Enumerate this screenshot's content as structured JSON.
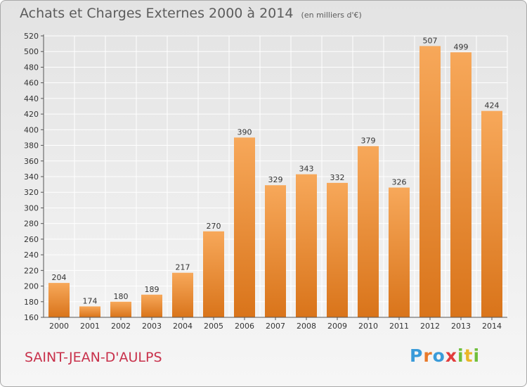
{
  "title": "Achats et Charges Externes 2000 à 2014",
  "unit_note": "(en milliers d'€)",
  "commune": "SAINT-JEAN-D'AULPS",
  "logo": [
    "P",
    "r",
    "o",
    "x",
    "i",
    "t",
    "i"
  ],
  "colors": {
    "bar_top": "#f7a85a",
    "bar_bottom": "#d9741a",
    "grid": "#ffffff",
    "title": "#5c5c5c",
    "commune": "#c8314b"
  },
  "chart_data": {
    "type": "bar",
    "categories": [
      "2000",
      "2001",
      "2002",
      "2003",
      "2004",
      "2005",
      "2006",
      "2007",
      "2008",
      "2009",
      "2010",
      "2011",
      "2012",
      "2013",
      "2014"
    ],
    "values": [
      204,
      174,
      180,
      189,
      217,
      270,
      390,
      329,
      343,
      332,
      379,
      326,
      507,
      499,
      424
    ],
    "ylim": [
      160,
      520
    ],
    "yticks": [
      160,
      180,
      200,
      220,
      240,
      260,
      280,
      300,
      320,
      340,
      360,
      380,
      400,
      420,
      440,
      460,
      480,
      500,
      520
    ],
    "grid": true
  }
}
